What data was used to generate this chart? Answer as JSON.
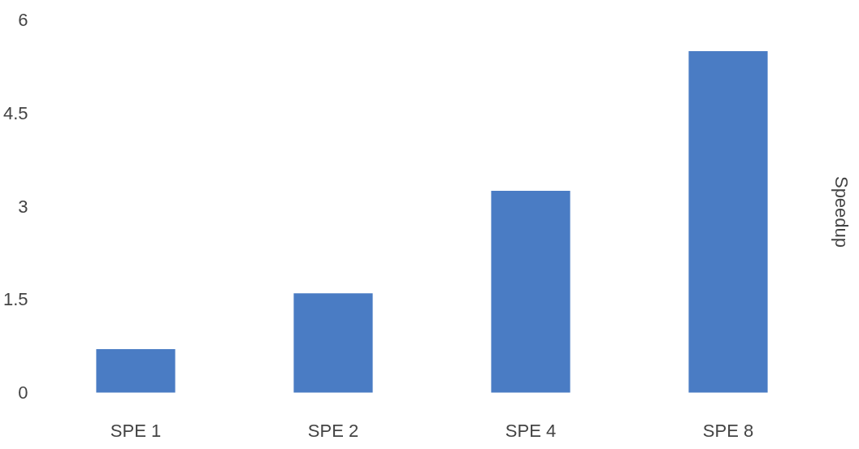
{
  "chart_data": {
    "type": "bar",
    "ylabel": "Speedup",
    "categories": [
      "SPE 1",
      "SPE 2",
      "SPE 4",
      "SPE 8"
    ],
    "values": [
      0.7,
      1.6,
      3.25,
      5.5
    ],
    "color": "#4a7cc4",
    "ylim": [
      0,
      6
    ],
    "yticks": [
      0,
      1.5,
      3,
      4.5,
      6
    ],
    "grid": false
  }
}
